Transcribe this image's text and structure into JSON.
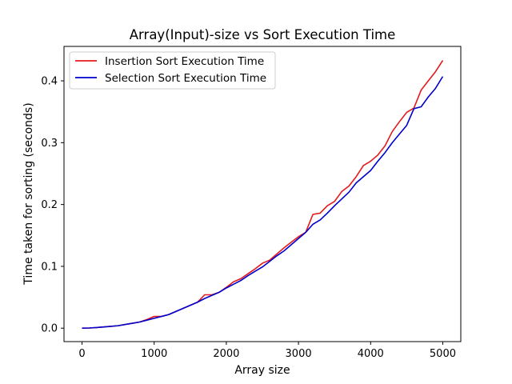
{
  "chart_data": {
    "type": "line",
    "title": "Array(Input)-size vs Sort Execution Time",
    "xlabel": "Array size",
    "ylabel": "Time taken for sorting (seconds)",
    "xlim": [
      -250,
      5250
    ],
    "ylim": [
      -0.0217,
      0.4557
    ],
    "xticks": [
      0,
      1000,
      2000,
      3000,
      4000,
      5000
    ],
    "xtick_labels": [
      "0",
      "1000",
      "2000",
      "3000",
      "4000",
      "5000"
    ],
    "yticks": [
      0.0,
      0.1,
      0.2,
      0.3,
      0.4
    ],
    "ytick_labels": [
      "0.0",
      "0.1",
      "0.2",
      "0.3",
      "0.4"
    ],
    "grid": false,
    "legend_position": "top-left",
    "x": [
      0,
      100,
      200,
      300,
      400,
      500,
      600,
      700,
      800,
      900,
      1000,
      1100,
      1200,
      1300,
      1400,
      1500,
      1600,
      1700,
      1800,
      1900,
      2000,
      2100,
      2200,
      2300,
      2400,
      2500,
      2600,
      2700,
      2800,
      2900,
      3000,
      3100,
      3200,
      3300,
      3400,
      3500,
      3600,
      3700,
      3800,
      3900,
      4000,
      4100,
      4200,
      4300,
      4400,
      4500,
      4600,
      4700,
      4800,
      4900,
      5000
    ],
    "series": [
      {
        "name": "Insertion Sort Execution Time",
        "color": "#e31a1c",
        "values": [
          0.0,
          0.0003,
          0.001,
          0.002,
          0.003,
          0.004,
          0.006,
          0.008,
          0.01,
          0.014,
          0.019,
          0.019,
          0.022,
          0.027,
          0.032,
          0.037,
          0.042,
          0.054,
          0.054,
          0.058,
          0.066,
          0.075,
          0.08,
          0.088,
          0.096,
          0.105,
          0.11,
          0.12,
          0.13,
          0.139,
          0.148,
          0.155,
          0.184,
          0.186,
          0.198,
          0.205,
          0.221,
          0.23,
          0.245,
          0.263,
          0.27,
          0.28,
          0.295,
          0.318,
          0.334,
          0.349,
          0.356,
          0.385,
          0.4,
          0.415,
          0.433
        ]
      },
      {
        "name": "Selection Sort Execution Time",
        "color": "#0000cd",
        "values": [
          0.0,
          0.0003,
          0.001,
          0.002,
          0.003,
          0.004,
          0.006,
          0.008,
          0.01,
          0.013,
          0.016,
          0.019,
          0.022,
          0.027,
          0.032,
          0.037,
          0.042,
          0.048,
          0.053,
          0.058,
          0.065,
          0.071,
          0.077,
          0.085,
          0.092,
          0.099,
          0.108,
          0.117,
          0.125,
          0.135,
          0.145,
          0.155,
          0.168,
          0.175,
          0.186,
          0.198,
          0.209,
          0.22,
          0.235,
          0.245,
          0.255,
          0.27,
          0.284,
          0.3,
          0.314,
          0.328,
          0.355,
          0.358,
          0.374,
          0.388,
          0.407
        ]
      }
    ]
  }
}
